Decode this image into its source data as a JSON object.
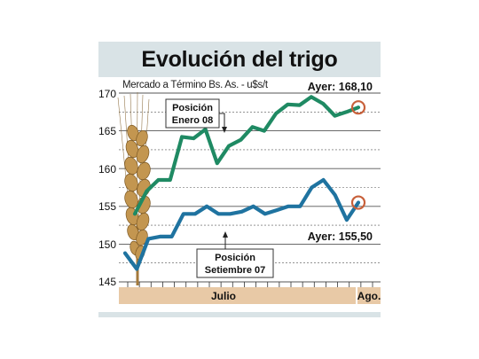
{
  "title": "Evolución del trigo",
  "subtitle": "Mercado a Término Bs. As. - u$s/t",
  "colors": {
    "enero_line": "#1f8a63",
    "setiembre_line": "#1f73a0",
    "marker": "#c8603a",
    "x_band": "#e8c9a6",
    "header_band": "#d9e3e6"
  },
  "icons": {
    "wheat": "wheat-ear-icon"
  },
  "chart_data": {
    "type": "line",
    "ylim": [
      145,
      170
    ],
    "y_ticks": [
      "145",
      "150",
      "155",
      "160",
      "165",
      "170"
    ],
    "x_labels": [
      "Julio",
      "Ago."
    ],
    "grid": "horizontal",
    "series": [
      {
        "name": "Posición Enero 08",
        "values": [
          154.0,
          157.0,
          158.5,
          158.5,
          164.2,
          164.0,
          165.2,
          160.7,
          163.0,
          163.8,
          165.5,
          165.0,
          167.3,
          168.5,
          168.4,
          169.5,
          168.6,
          167.0,
          167.5,
          168.1
        ]
      },
      {
        "name": "Posición Setiembre 07",
        "values": [
          148.8,
          146.7,
          150.7,
          151.0,
          151.0,
          154.0,
          154.0,
          155.0,
          154.0,
          154.0,
          154.3,
          155.0,
          154.0,
          154.5,
          155.0,
          155.0,
          157.5,
          158.5,
          156.5,
          153.2,
          155.5
        ]
      }
    ],
    "annotations": [
      {
        "label": "Ayer: 168,10"
      },
      {
        "label": "Ayer: 155,50"
      },
      {
        "label_line1": "Posición",
        "label_line2": "Enero 08"
      },
      {
        "label_line1": "Posición",
        "label_line2": "Setiembre 07"
      }
    ]
  }
}
